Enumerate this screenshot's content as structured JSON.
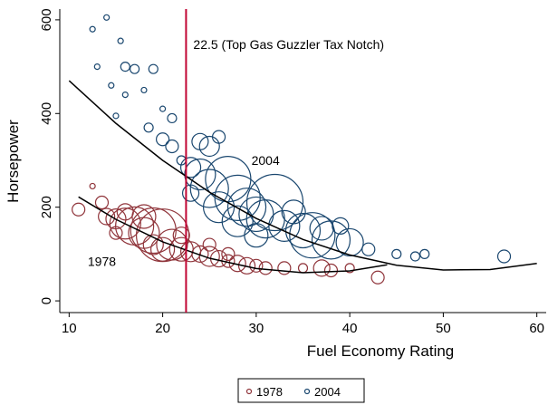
{
  "chart_data": {
    "type": "scatter",
    "x_label": "Fuel Economy Rating",
    "y_label": "Horsepower",
    "xlim": [
      9,
      61
    ],
    "ylim": [
      -25,
      623
    ],
    "xticks": [
      10,
      20,
      30,
      40,
      50,
      60
    ],
    "yticks": [
      0,
      200,
      400,
      600
    ],
    "series": [
      {
        "name": "1978",
        "color": "#90353b",
        "x": [
          11,
          12.5,
          13.5,
          14,
          15,
          16,
          17,
          18,
          19,
          20,
          21,
          22,
          23,
          24,
          25,
          26,
          27,
          28,
          29,
          30,
          31,
          33,
          35,
          37,
          38,
          40,
          43,
          18,
          16,
          20,
          22,
          25,
          27,
          19,
          15
        ],
        "values": [
          195,
          245,
          210,
          180,
          175,
          165,
          160,
          145,
          150,
          140,
          120,
          110,
          105,
          100,
          95,
          90,
          85,
          80,
          75,
          75,
          70,
          70,
          70,
          70,
          65,
          70,
          50,
          180,
          190,
          110,
          140,
          120,
          100,
          120,
          145
        ],
        "sizes": [
          3,
          1,
          3,
          4,
          5,
          8,
          10,
          8,
          12,
          14,
          8,
          6,
          5,
          4,
          5,
          4,
          3,
          4,
          4,
          3,
          3,
          3,
          2,
          4,
          3,
          2,
          3,
          6,
          4,
          6,
          4,
          3,
          3,
          5,
          3
        ]
      },
      {
        "name": "2004",
        "color": "#1a476f",
        "x": [
          14,
          12.5,
          15.5,
          16,
          17,
          19,
          13,
          14.5,
          16,
          18,
          20,
          21,
          15,
          18.5,
          20,
          21,
          22,
          23,
          24,
          25,
          26,
          24,
          25,
          27,
          28,
          29,
          30,
          31,
          33,
          35,
          36,
          38,
          40,
          42,
          45,
          47,
          48,
          56.5,
          32,
          26,
          37,
          28,
          23,
          34,
          30,
          39
        ],
        "values": [
          605,
          580,
          555,
          500,
          495,
          495,
          500,
          460,
          440,
          450,
          410,
          390,
          395,
          370,
          345,
          330,
          300,
          285,
          340,
          330,
          350,
          270,
          240,
          260,
          220,
          200,
          185,
          175,
          160,
          150,
          140,
          130,
          125,
          110,
          100,
          95,
          100,
          95,
          210,
          200,
          155,
          170,
          230,
          190,
          140,
          160
        ],
        "sizes": [
          1,
          1,
          1,
          2,
          2,
          2,
          1,
          1,
          1,
          1,
          1,
          2,
          1,
          2,
          3,
          3,
          2,
          5,
          4,
          5,
          3,
          8,
          10,
          12,
          12,
          10,
          9,
          10,
          8,
          9,
          12,
          10,
          7,
          3,
          2,
          2,
          2,
          3,
          15,
          8,
          6,
          8,
          4,
          6,
          6,
          4
        ]
      }
    ],
    "fits": [
      {
        "x": [
          11,
          15,
          20,
          25,
          30,
          35,
          40,
          44
        ],
        "values": [
          222,
          174,
          126,
          91,
          69,
          60,
          64,
          77
        ],
        "color": "#000000"
      },
      {
        "x": [
          10,
          15,
          20,
          25,
          30,
          35,
          40,
          45,
          50,
          55,
          60
        ],
        "values": [
          470,
          379,
          300,
          232,
          176,
          131,
          98,
          76,
          66,
          67,
          80
        ],
        "color": "#000000"
      }
    ],
    "reference_line": {
      "x": 22.5,
      "label": "22.5 (Top Gas Guzzler Tax Notch)",
      "color": "#c10534"
    },
    "annotations": [
      {
        "text": "2004",
        "x": 31,
        "y": 290,
        "color": "#1a476f"
      },
      {
        "text": "1978",
        "x": 13.5,
        "y": 75,
        "color": "#90353b"
      }
    ],
    "legend": "bottom"
  }
}
